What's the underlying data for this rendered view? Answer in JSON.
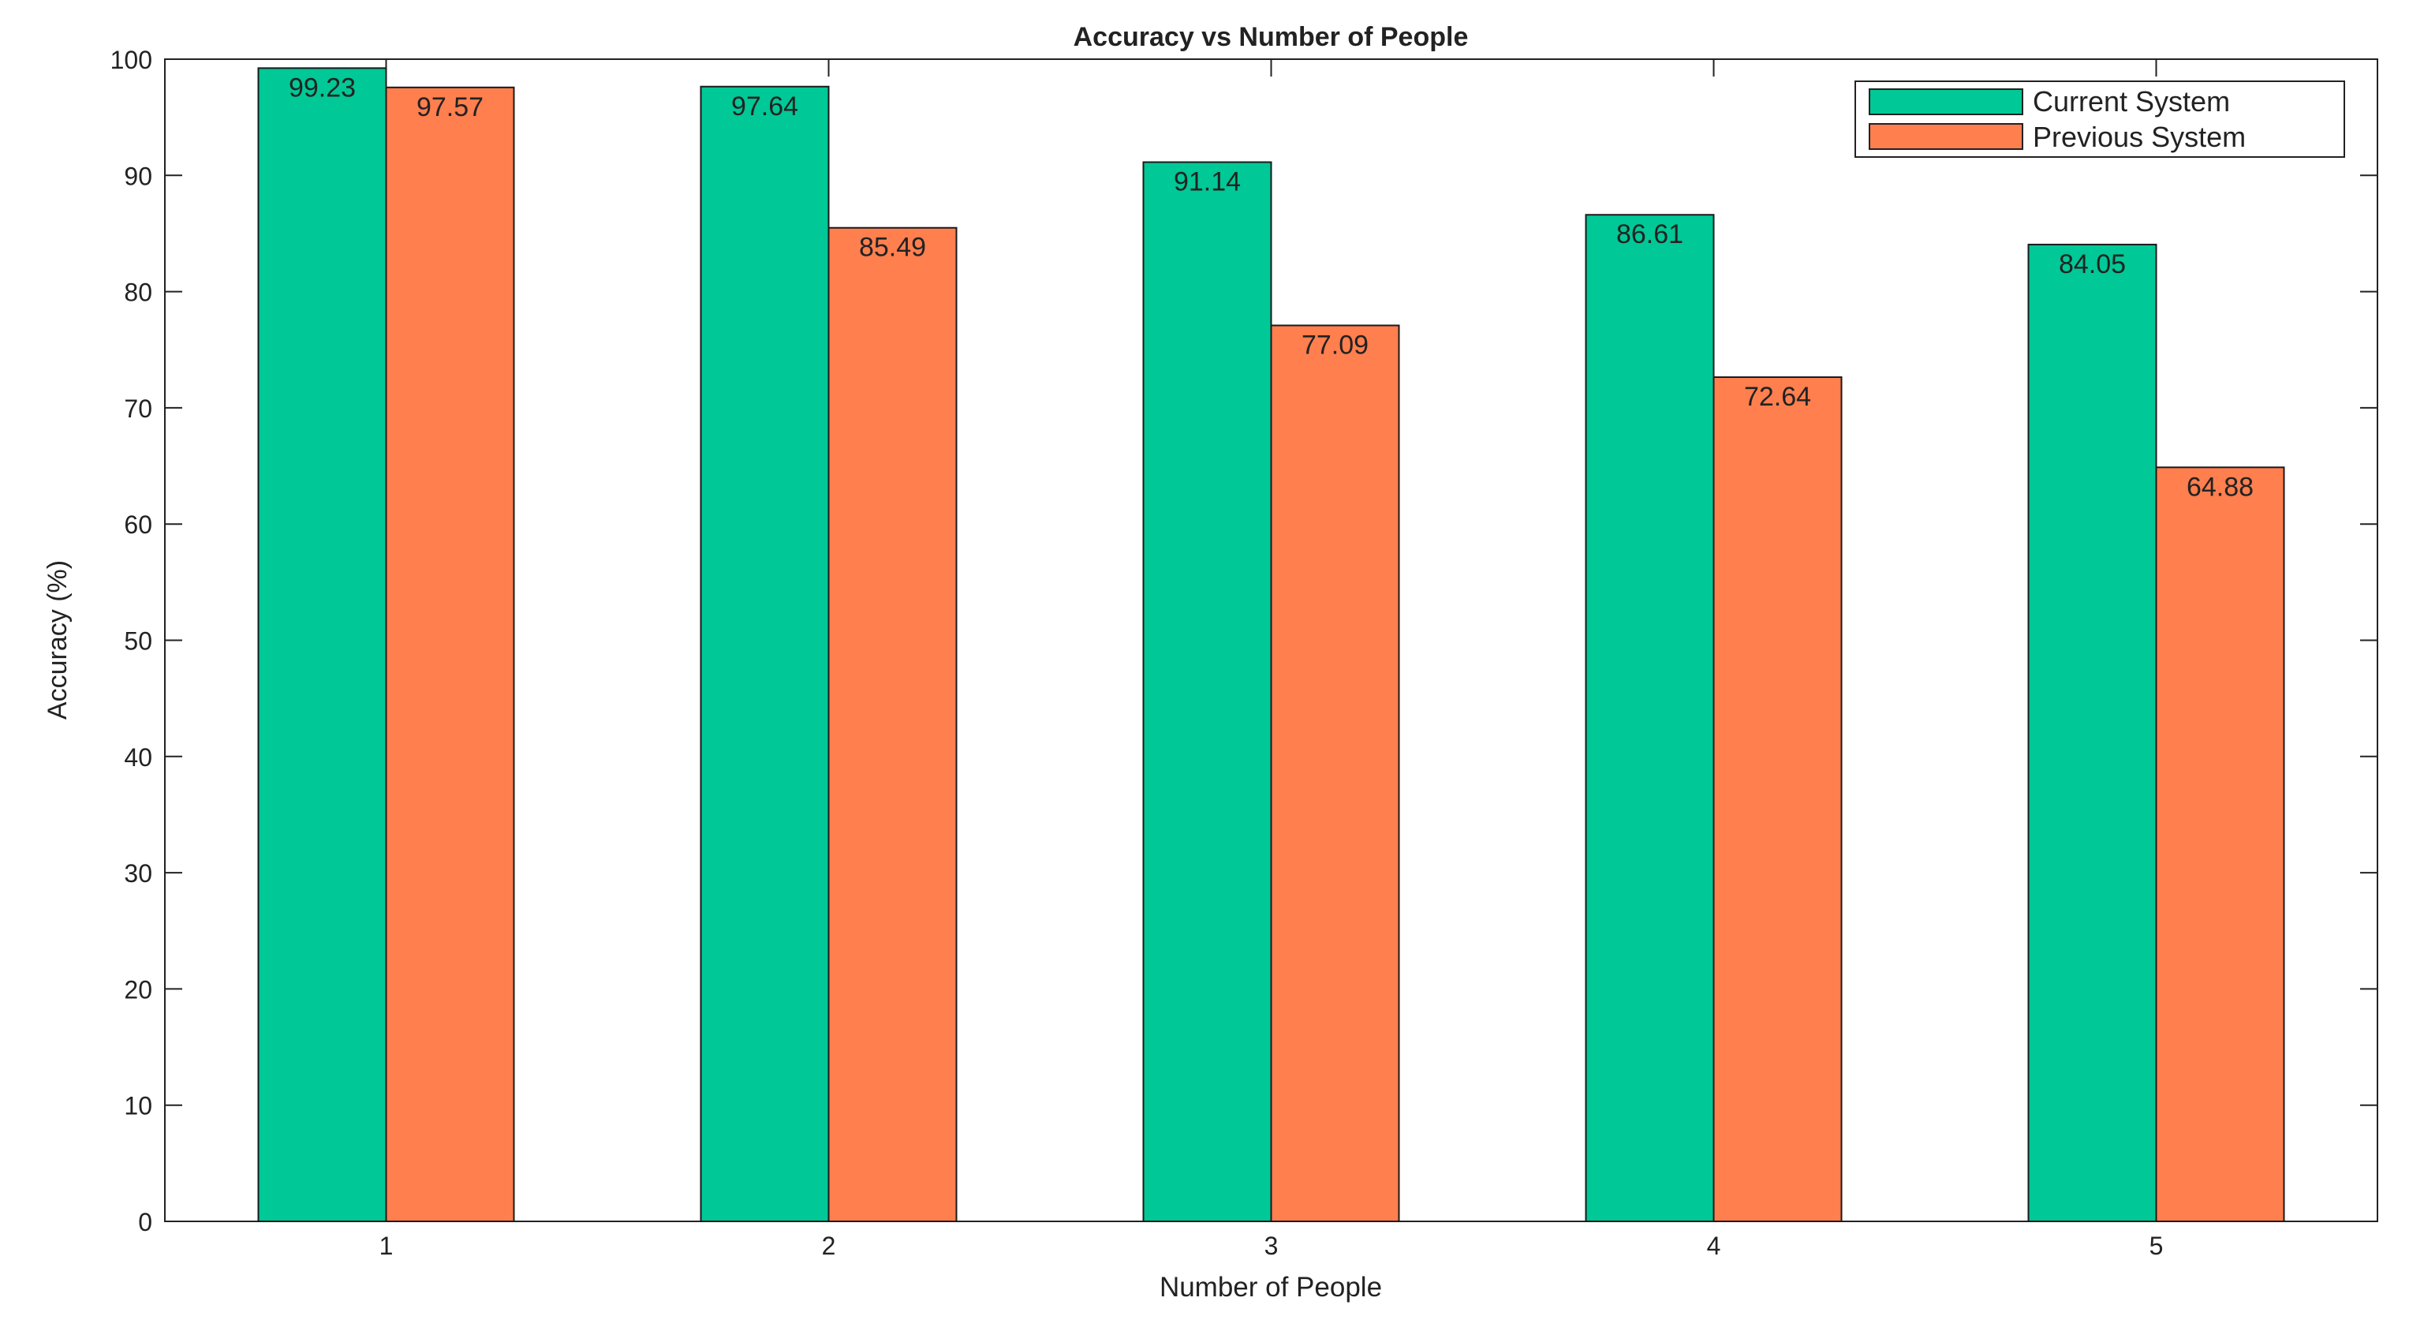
{
  "chart_data": {
    "type": "bar",
    "title": "Accuracy vs Number of People",
    "xlabel": "Number of People",
    "ylabel": "Accuracy (%)",
    "categories": [
      "1",
      "2",
      "3",
      "4",
      "5"
    ],
    "series": [
      {
        "name": "Current System",
        "color": "#00C896",
        "values": [
          99.23,
          97.64,
          91.14,
          86.61,
          84.05
        ],
        "labels": [
          "99.23",
          "97.64",
          "91.14",
          "86.61",
          "84.05"
        ]
      },
      {
        "name": "Previous System",
        "color": "#FF7F4F",
        "values": [
          97.57,
          85.49,
          77.09,
          72.64,
          64.88
        ],
        "labels": [
          "97.57",
          "85.49",
          "77.09",
          "72.64",
          "64.88"
        ]
      }
    ],
    "ylim": [
      0,
      100
    ],
    "yticks": [
      0,
      10,
      20,
      30,
      40,
      50,
      60,
      70,
      80,
      90,
      100
    ],
    "ytick_labels": [
      "0",
      "10",
      "20",
      "30",
      "40",
      "50",
      "60",
      "70",
      "80",
      "90",
      "100"
    ],
    "grid": false,
    "legend_position": "top-right"
  }
}
